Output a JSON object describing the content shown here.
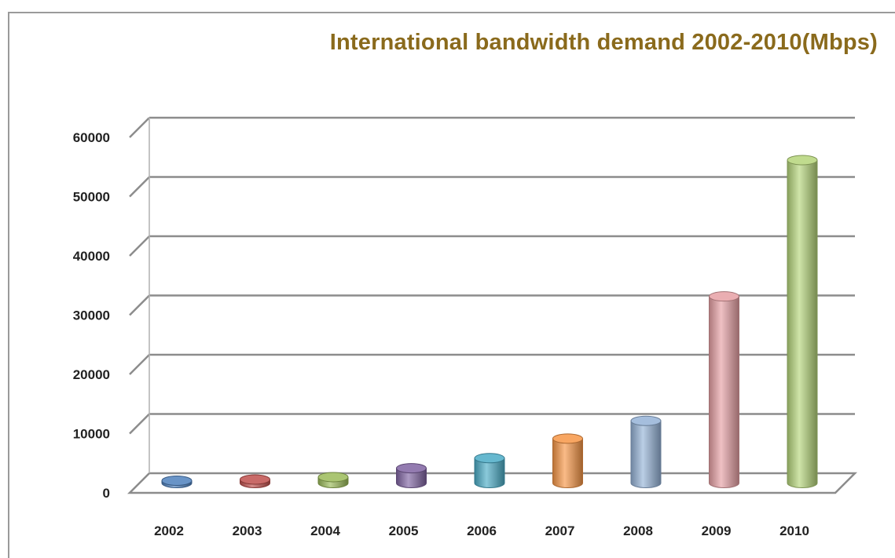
{
  "chart_data": {
    "type": "bar",
    "title": "International bandwidth demand 2002-2010(Mbps)",
    "xlabel": "",
    "ylabel": "",
    "categories": [
      "2002",
      "2003",
      "2004",
      "2005",
      "2006",
      "2007",
      "2008",
      "2009",
      "2010"
    ],
    "values": [
      400,
      600,
      1000,
      2500,
      4200,
      7500,
      10500,
      31500,
      54500
    ],
    "ylim": [
      0,
      60000
    ],
    "yticks": [
      0,
      10000,
      20000,
      30000,
      40000,
      50000,
      60000
    ],
    "ytick_labels": [
      "0",
      "10000",
      "20000",
      "30000",
      "40000",
      "50000",
      "60000"
    ],
    "grid": true,
    "style": "3d-cylinder",
    "colors": [
      "#4f81bd",
      "#c0504d",
      "#9bbb59",
      "#8064a2",
      "#4bacc6",
      "#f79646",
      "#95b3d7",
      "#e6a0a4",
      "#b5d57a"
    ]
  }
}
